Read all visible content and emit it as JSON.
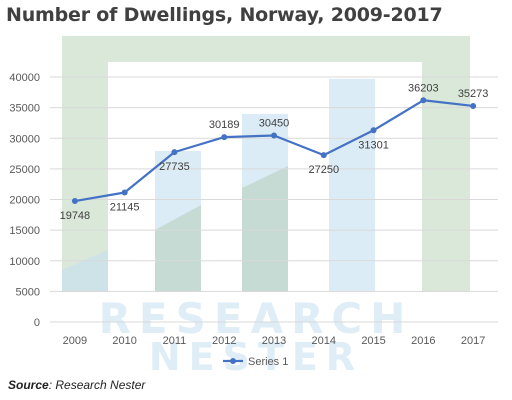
{
  "colors": {
    "series": "#4472c4",
    "axis_text": "#595959",
    "gridline": "#d9d9d9",
    "watermark_green": "#a8c8a8",
    "watermark_blue": "#c5dff2",
    "title": "#404040"
  },
  "watermark_text": [
    "RESEARCH",
    "NESTER"
  ],
  "source": {
    "label": "Source",
    "text": "Research Nester"
  },
  "chart_data": {
    "type": "line",
    "title": "Number of Dwellings, Norway, 2009-2017",
    "xlabel": "",
    "ylabel": "",
    "categories": [
      "2009",
      "2010",
      "2011",
      "2012",
      "2013",
      "2014",
      "2015",
      "2016",
      "2017"
    ],
    "series": [
      {
        "name": "Series 1",
        "values": [
          19748,
          21145,
          27735,
          30189,
          30450,
          27250,
          31301,
          36203,
          35273
        ]
      }
    ],
    "data_labels": [
      "19748",
      "21145",
      "27735",
      "30189",
      "30450",
      "27250",
      "31301",
      "36203",
      "35273"
    ],
    "yticks": [
      "0",
      "5000",
      "10000",
      "15000",
      "20000",
      "25000",
      "30000",
      "35000",
      "40000"
    ],
    "ylim": [
      0,
      40000
    ],
    "grid": true,
    "legend": "bottom",
    "markers": true
  }
}
